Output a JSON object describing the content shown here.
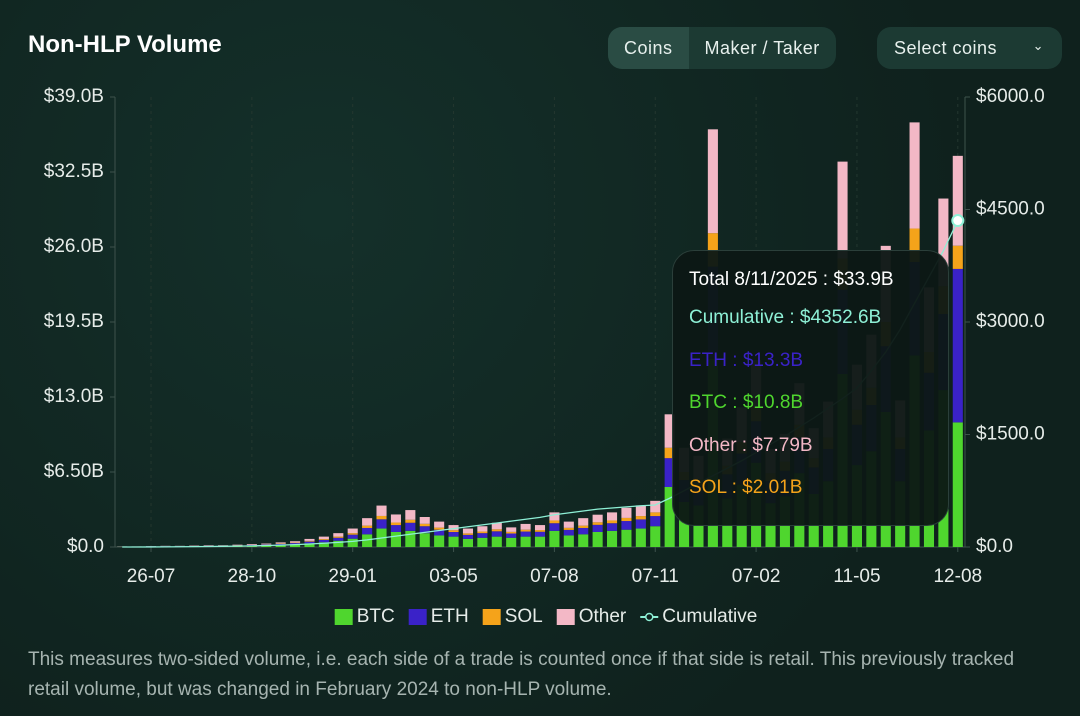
{
  "header": {
    "title": "Non-HLP Volume",
    "tabs": [
      "Coins",
      "Maker / Taker"
    ],
    "select": "Select coins"
  },
  "chart_data": {
    "type": "stacked-bar",
    "categories": [
      null,
      null,
      "26-07",
      null,
      null,
      null,
      null,
      null,
      null,
      "28-10",
      null,
      null,
      null,
      null,
      null,
      null,
      "29-01",
      null,
      null,
      null,
      null,
      null,
      null,
      "03-05",
      null,
      null,
      null,
      null,
      null,
      null,
      "07-08",
      null,
      null,
      null,
      null,
      null,
      null,
      "07-11",
      null,
      null,
      null,
      null,
      null,
      null,
      "07-02",
      null,
      null,
      null,
      null,
      null,
      null,
      "11-05",
      null,
      null,
      null,
      null,
      null,
      null,
      "12-08"
    ],
    "series": [
      {
        "name": "BTC",
        "color": "#4fd62e",
        "values": [
          0.02,
          0.02,
          0.04,
          0.05,
          0.05,
          0.05,
          0.07,
          0.07,
          0.09,
          0.11,
          0.14,
          0.18,
          0.23,
          0.32,
          0.41,
          0.54,
          0.72,
          1.1,
          1.6,
          1.3,
          1.4,
          1.2,
          1.0,
          0.9,
          0.7,
          0.8,
          0.9,
          0.8,
          0.9,
          0.9,
          1.4,
          1.0,
          1.1,
          1.3,
          1.4,
          1.5,
          1.6,
          1.8,
          5.2,
          3.9,
          3.6,
          16.3,
          4.2,
          5.4,
          7.3,
          3.8,
          4.4,
          6.4,
          4.6,
          5.7,
          15.0,
          7.1,
          8.3,
          11.7,
          5.7,
          16.6,
          10.1,
          13.6,
          10.8
        ]
      },
      {
        "name": "ETH",
        "color": "#3a22c8",
        "values": [
          0.01,
          0.01,
          0.02,
          0.02,
          0.02,
          0.03,
          0.03,
          0.03,
          0.04,
          0.06,
          0.07,
          0.09,
          0.11,
          0.15,
          0.2,
          0.26,
          0.35,
          0.55,
          0.8,
          0.6,
          0.7,
          0.6,
          0.5,
          0.4,
          0.35,
          0.4,
          0.46,
          0.37,
          0.44,
          0.42,
          0.66,
          0.48,
          0.55,
          0.62,
          0.66,
          0.75,
          0.79,
          0.88,
          2.5,
          1.9,
          1.7,
          8.0,
          2.1,
          2.7,
          3.6,
          1.9,
          2.2,
          3.1,
          2.3,
          2.8,
          7.3,
          3.5,
          4.0,
          5.7,
          2.8,
          8.1,
          5.0,
          6.6,
          13.3
        ]
      },
      {
        "name": "SOL",
        "color": "#f5a31a",
        "values": [
          0,
          0,
          0,
          0,
          0,
          0,
          0,
          0,
          0.01,
          0.01,
          0.02,
          0.03,
          0.04,
          0.06,
          0.07,
          0.1,
          0.13,
          0.2,
          0.29,
          0.22,
          0.26,
          0.21,
          0.18,
          0.15,
          0.13,
          0.14,
          0.17,
          0.14,
          0.16,
          0.15,
          0.24,
          0.18,
          0.2,
          0.22,
          0.24,
          0.27,
          0.29,
          0.32,
          0.9,
          0.7,
          0.6,
          2.9,
          0.75,
          1.0,
          1.3,
          0.7,
          0.8,
          1.1,
          0.8,
          1.0,
          2.7,
          1.3,
          1.5,
          2.1,
          1.0,
          2.9,
          1.8,
          2.4,
          2.01
        ]
      },
      {
        "name": "Other",
        "color": "#f3b8c6",
        "values": [
          0.02,
          0.02,
          0.02,
          0.03,
          0.03,
          0.04,
          0.05,
          0.05,
          0.06,
          0.07,
          0.07,
          0.1,
          0.12,
          0.17,
          0.22,
          0.3,
          0.4,
          0.65,
          0.9,
          0.7,
          0.84,
          0.59,
          0.52,
          0.45,
          0.42,
          0.46,
          0.57,
          0.39,
          0.5,
          0.43,
          0.7,
          0.54,
          0.65,
          0.66,
          0.7,
          0.88,
          0.92,
          1.0,
          2.9,
          2.1,
          2.0,
          9.0,
          2.35,
          3.0,
          4.0,
          2.1,
          2.4,
          3.6,
          2.6,
          3.1,
          8.4,
          3.9,
          4.6,
          6.6,
          3.2,
          9.2,
          5.6,
          7.6,
          7.79
        ]
      },
      {
        "name": "Cumulative",
        "color": "#8ef0d6",
        "axis": "y2",
        "values": [
          0,
          0,
          1,
          2,
          3,
          5,
          7,
          9,
          12,
          15,
          20,
          25,
          32,
          40,
          50,
          62,
          75,
          95,
          120,
          145,
          170,
          195,
          220,
          245,
          270,
          295,
          320,
          345,
          370,
          395,
          430,
          455,
          480,
          505,
          520,
          535,
          550,
          560,
          650,
          750,
          850,
          950,
          1050,
          1150,
          1260,
          1370,
          1480,
          1600,
          1720,
          1850,
          1980,
          2120,
          2350,
          2600,
          2900,
          3250,
          3600,
          3950,
          4352.6
        ]
      }
    ],
    "ylim": [
      0,
      39
    ],
    "yticks": [
      {
        "value": 0,
        "label": "$0.0"
      },
      {
        "value": 6.5,
        "label": "$6.50B"
      },
      {
        "value": 13,
        "label": "$13.0B"
      },
      {
        "value": 19.5,
        "label": "$19.5B"
      },
      {
        "value": 26,
        "label": "$26.0B"
      },
      {
        "value": 32.5,
        "label": "$32.5B"
      },
      {
        "value": 39,
        "label": "$39.0B"
      }
    ],
    "y2lim": [
      0,
      6000
    ],
    "y2ticks": [
      {
        "value": 0,
        "label": "$0.0"
      },
      {
        "value": 1500,
        "label": "$1500.0"
      },
      {
        "value": 3000,
        "label": "$3000.0"
      },
      {
        "value": 4500,
        "label": "$4500.0"
      },
      {
        "value": 6000,
        "label": "$6000.0"
      }
    ],
    "grid": false,
    "legend": "bottom",
    "tooltip": {
      "title": "Total 8/11/2025 : $33.9B",
      "lines": [
        "Cumulative : $4352.6B",
        "ETH : $13.3B",
        "BTC : $10.8B",
        "Other : $7.79B",
        "SOL : $2.01B"
      ]
    }
  },
  "footer": "This measures two-sided volume, i.e. each side of a trade is counted once if that side is retail. This previously tracked retail volume, but was changed in February 2024 to non-HLP volume."
}
